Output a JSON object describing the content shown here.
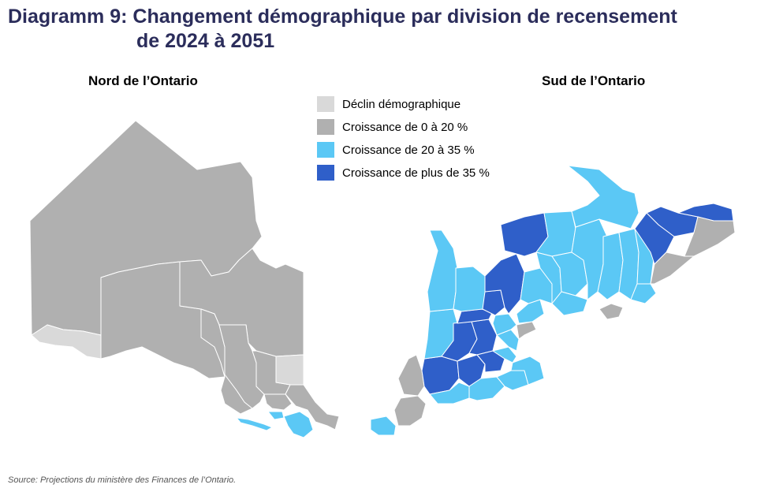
{
  "title": {
    "line1": "Diagramm 9: Changement démographique par division de recensement",
    "line2": "de 2024 à 2051"
  },
  "maps": {
    "north_label": "Nord de l’Ontario",
    "south_label": "Sud de l’Ontario"
  },
  "legend": [
    {
      "label": "Déclin démographique",
      "color": "#d9d9d9"
    },
    {
      "label": "Croissance de 0 à 20 %",
      "color": "#b0b0b0"
    },
    {
      "label": "Croissance de 20 à 35 %",
      "color": "#5bc8f5"
    },
    {
      "label": "Croissance de plus de 35 %",
      "color": "#2f5fc9"
    }
  ],
  "source": "Source: Projections du ministère des Finances de l’Ontario."
}
